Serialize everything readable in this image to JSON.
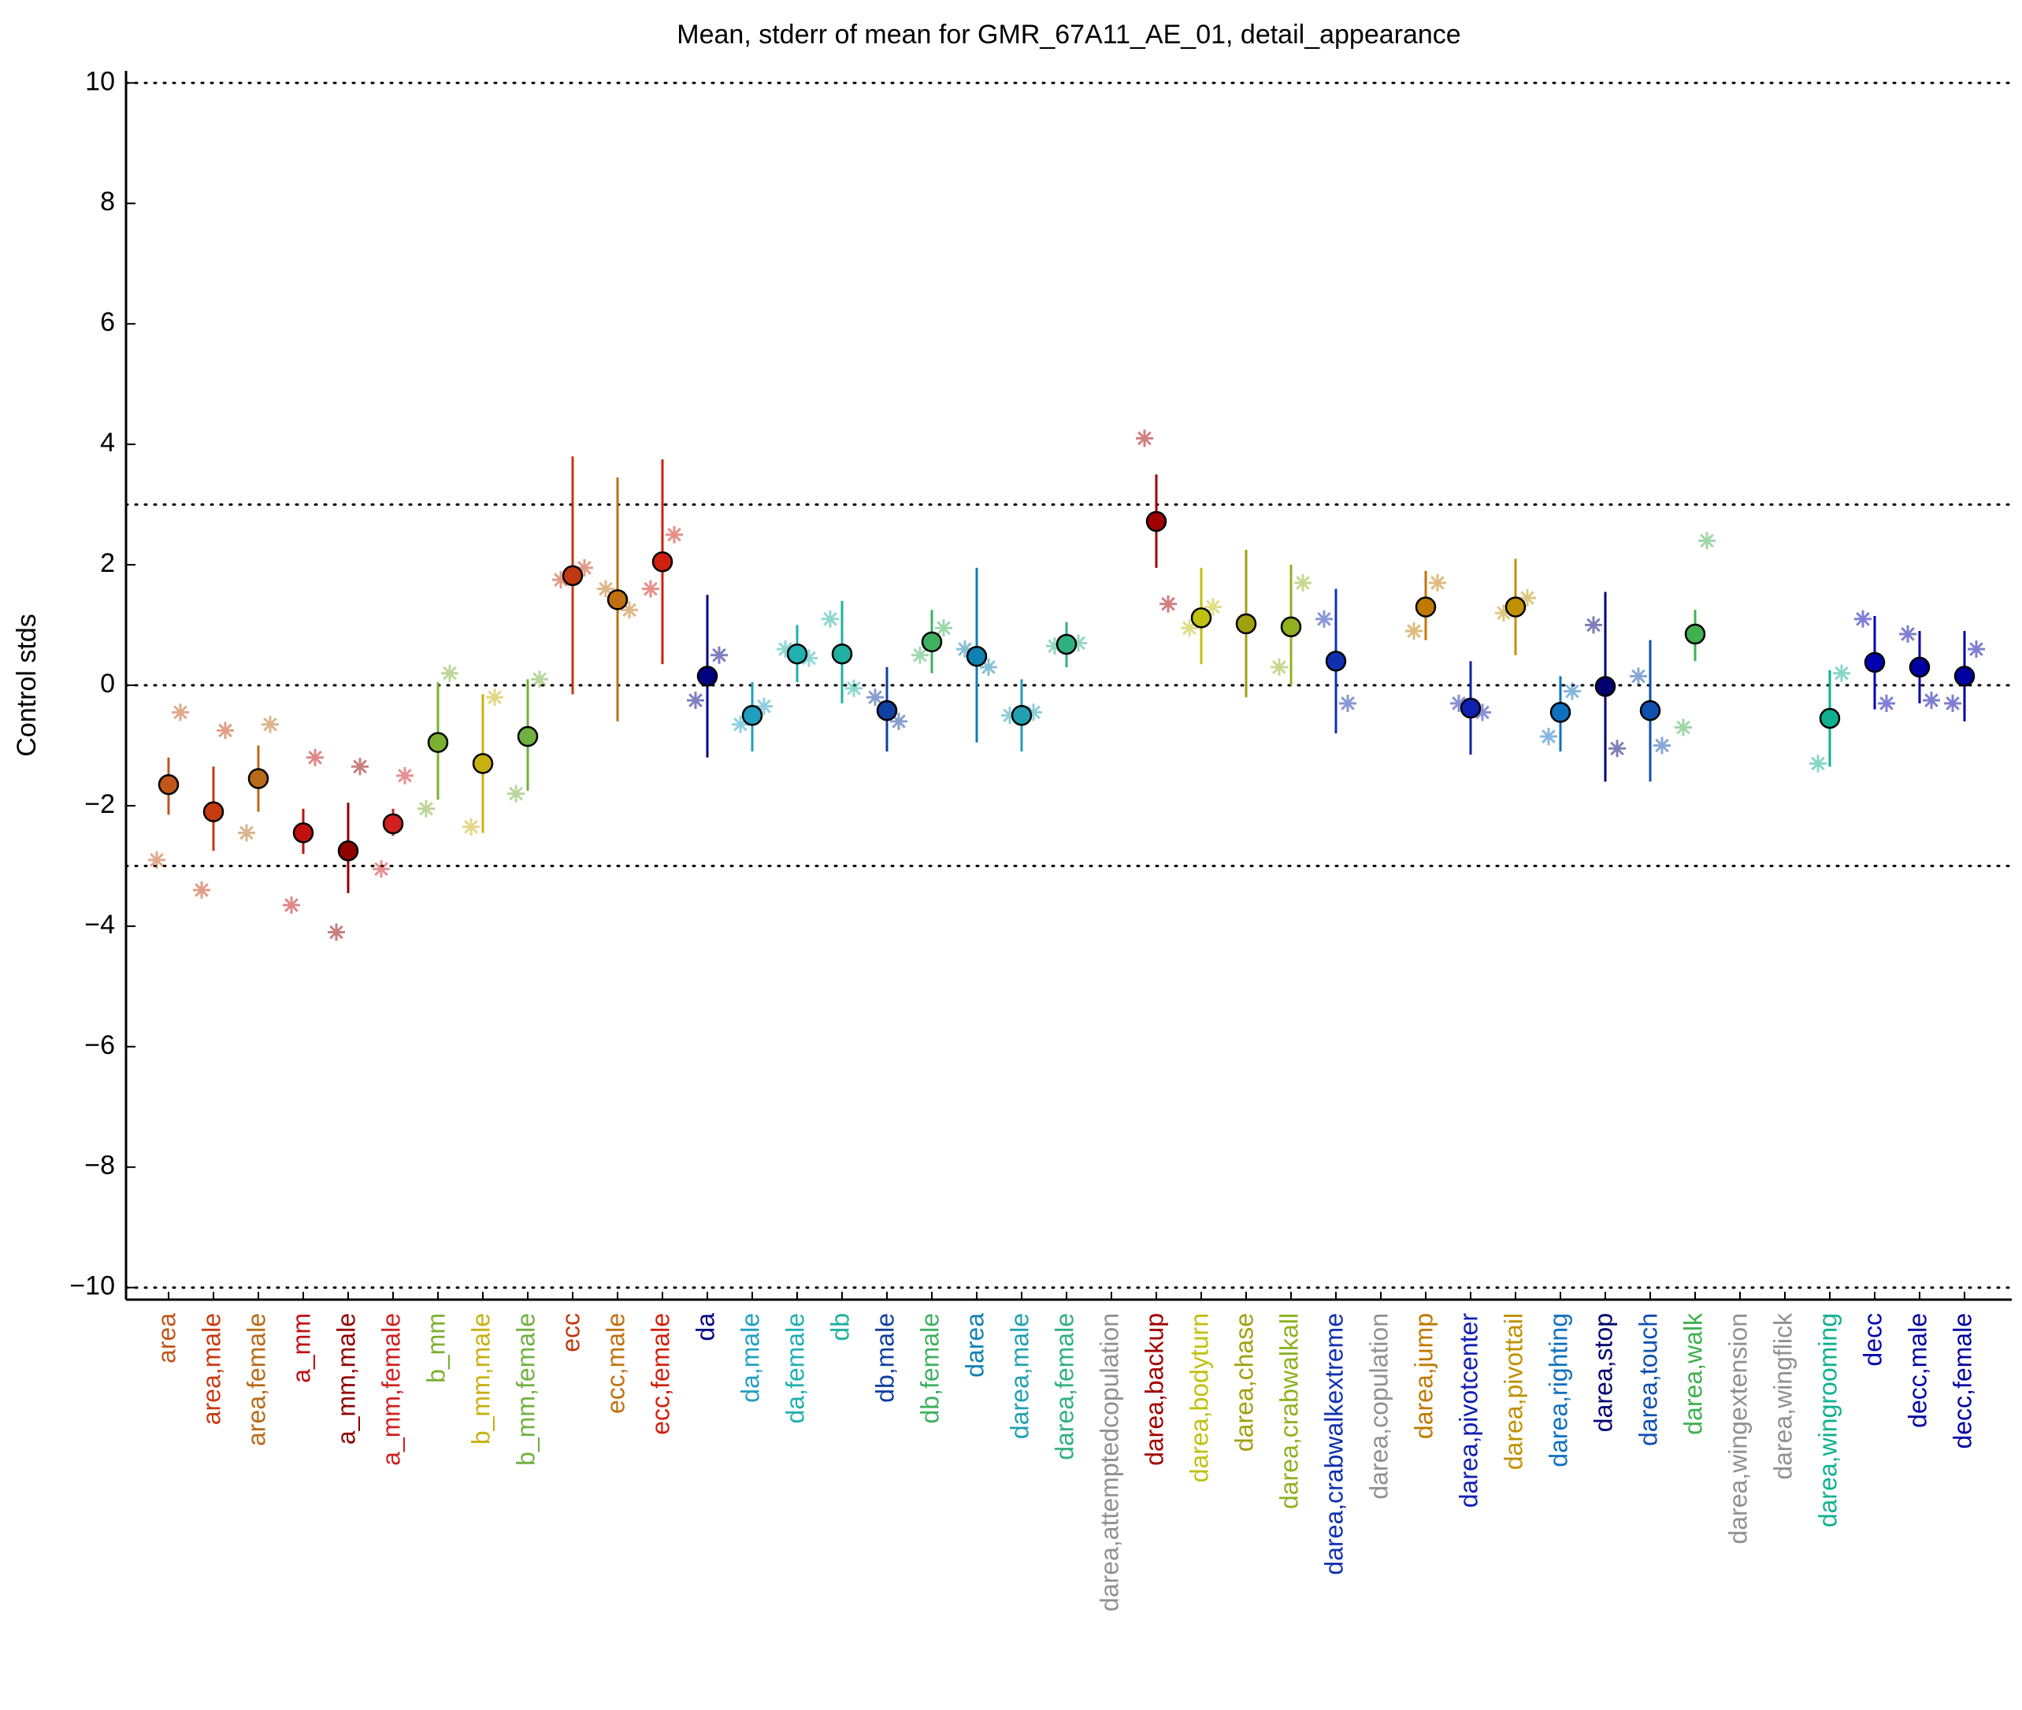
{
  "chart_data": {
    "type": "errorbar",
    "title": "Mean, stderr of mean for GMR_67A11_AE_01, detail_appearance",
    "y_label": "Control stds",
    "categories": [
      "area",
      "area,male",
      "area,female",
      "a_mm",
      "a_mm,male",
      "a_mm,female",
      "b_mm",
      "b_mm,male",
      "b_mm,female",
      "ecc",
      "ecc,male",
      "ecc,female",
      "da",
      "da,male",
      "da,female",
      "db",
      "db,male",
      "db,female",
      "darea",
      "darea,male",
      "darea,female",
      "darea,attemptedcopulation",
      "darea,backup",
      "darea,bodyturn",
      "darea,chase",
      "darea,crabwalkall",
      "darea,crabwalkextreme",
      "darea,copulation",
      "darea,jump",
      "darea,pivotcenter",
      "darea,pivottail",
      "darea,righting",
      "darea,stop",
      "darea,touch",
      "darea,walk",
      "darea,wingextension",
      "darea,wingflick",
      "darea,wingrooming",
      "decc",
      "decc,male",
      "decc,female"
    ],
    "colors": [
      "#c0561a",
      "#c83a10",
      "#b86a18",
      "#c01010",
      "#900000",
      "#d02020",
      "#7ab030",
      "#c8b010",
      "#70b040",
      "#c03810",
      "#c07010",
      "#d02010",
      "#000080",
      "#20a0c0",
      "#20b0b0",
      "#20b0a0",
      "#1040a0",
      "#40b060",
      "#1080b0",
      "#20a0b0",
      "#30b080",
      "#909090",
      "#a00000",
      "#c0c010",
      "#a0a010",
      "#90b020",
      "#1030b0",
      "#909090",
      "#c07800",
      "#1020b0",
      "#c09000",
      "#1070c0",
      "#000070",
      "#1050b0",
      "#40b050",
      "#909090",
      "#909090",
      "#10b090",
      "#0000b0",
      "#0000a0",
      "#0000a0"
    ],
    "values": [
      -1.65,
      -2.1,
      -1.55,
      -2.45,
      -2.75,
      -2.3,
      -0.95,
      -1.3,
      -0.85,
      1.82,
      1.42,
      2.05,
      0.15,
      -0.5,
      0.52,
      0.52,
      -0.42,
      0.72,
      0.48,
      -0.5,
      0.68,
      null,
      2.72,
      1.12,
      1.02,
      0.97,
      0.4,
      null,
      1.3,
      -0.38,
      1.3,
      -0.45,
      -0.02,
      -0.42,
      0.85,
      null,
      null,
      -0.55,
      0.38,
      0.3,
      0.15
    ],
    "lower": [
      -2.15,
      -2.75,
      -2.1,
      -2.8,
      -3.45,
      -2.5,
      -1.9,
      -2.45,
      -1.75,
      -0.15,
      -0.6,
      0.35,
      -1.2,
      -1.1,
      0.05,
      -0.3,
      -1.1,
      0.2,
      -0.95,
      -1.1,
      0.3,
      null,
      1.95,
      0.35,
      -0.2,
      0,
      -0.8,
      null,
      0.75,
      -1.15,
      0.5,
      -1.1,
      -1.6,
      -1.6,
      0.4,
      null,
      null,
      -1.35,
      -0.4,
      -0.3,
      -0.6
    ],
    "upper": [
      -1.2,
      -1.35,
      -1.0,
      -2.05,
      -1.95,
      -2.05,
      0.05,
      -0.15,
      0.1,
      3.8,
      3.45,
      3.75,
      1.5,
      0.05,
      1.0,
      1.4,
      0.3,
      1.25,
      1.95,
      0.1,
      1.05,
      null,
      3.5,
      1.95,
      2.25,
      2.0,
      1.6,
      null,
      1.9,
      0.4,
      2.1,
      0.15,
      1.55,
      0.75,
      1.25,
      null,
      null,
      0.25,
      1.15,
      0.9,
      0.9
    ],
    "star_values_1": [
      -2.9,
      -3.4,
      -2.45,
      -3.65,
      -4.1,
      -3.05,
      -2.05,
      -2.35,
      -1.8,
      1.75,
      1.6,
      1.6,
      -0.25,
      -0.65,
      0.6,
      1.1,
      -0.2,
      0.5,
      0.6,
      -0.5,
      0.65,
      null,
      4.1,
      0.95,
      null,
      0.3,
      1.1,
      null,
      0.9,
      -0.3,
      1.2,
      -0.85,
      1.0,
      0.15,
      -0.7,
      null,
      null,
      -1.3,
      1.1,
      0.85,
      -0.3
    ],
    "star_values_2": [
      -0.45,
      -0.75,
      -0.65,
      -1.2,
      -1.35,
      -1.5,
      0.2,
      -0.2,
      0.1,
      1.95,
      1.25,
      2.5,
      0.5,
      -0.35,
      0.45,
      -0.05,
      -0.6,
      0.95,
      0.3,
      -0.45,
      0.7,
      null,
      1.35,
      1.3,
      null,
      1.7,
      -0.3,
      null,
      1.7,
      -0.45,
      1.45,
      -0.1,
      -1.05,
      -1.0,
      2.4,
      null,
      null,
      0.2,
      -0.3,
      -0.25,
      0.6
    ],
    "ylim": [
      -10.2,
      10.2
    ],
    "yticks": [
      {
        "value": -10,
        "label": "−10"
      },
      {
        "value": -8,
        "label": "−8"
      },
      {
        "value": -6,
        "label": "−6"
      },
      {
        "value": -4,
        "label": "−4"
      },
      {
        "value": -2,
        "label": "−2"
      },
      0,
      2,
      4,
      6,
      8,
      10
    ],
    "reference_lines": [
      -10,
      -3,
      0,
      3,
      10
    ]
  }
}
